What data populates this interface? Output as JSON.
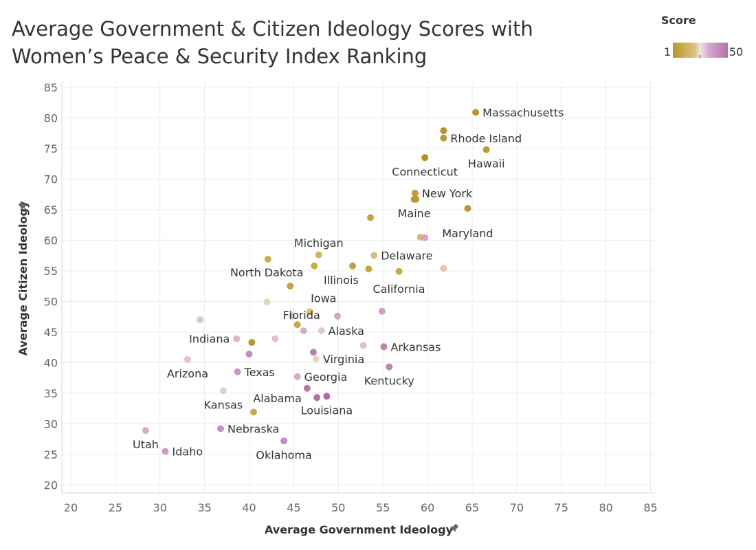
{
  "chart_data": {
    "type": "scatter",
    "title": "Average Government & Citizen Ideology Scores with Women’s Peace & Security Index Ranking",
    "xlabel": "Average Government Ideology",
    "ylabel": "Average Citizen Ideology",
    "xlim": [
      19,
      85.5
    ],
    "ylim": [
      18.7,
      86
    ],
    "xticks": [
      20,
      25,
      30,
      35,
      40,
      45,
      50,
      55,
      60,
      65,
      70,
      75,
      80,
      85
    ],
    "yticks": [
      20,
      25,
      30,
      35,
      40,
      45,
      50,
      55,
      60,
      65,
      70,
      75,
      80,
      85
    ],
    "grid": true,
    "legend": {
      "title": "Score",
      "min_label": "1",
      "max_label": "50",
      "position": "top-right"
    },
    "points": [
      {
        "label": "Massachusetts",
        "x": 65.4,
        "y": 80.9,
        "score": 4
      },
      {
        "label": "",
        "x": 61.8,
        "y": 77.9,
        "score": 3
      },
      {
        "label": "Rhode Island",
        "x": 61.8,
        "y": 76.7,
        "score": 5
      },
      {
        "label": "Hawaii",
        "x": 66.6,
        "y": 74.8,
        "score": 6
      },
      {
        "label": "Connecticut",
        "x": 59.7,
        "y": 73.5,
        "score": 2
      },
      {
        "label": "New York",
        "x": 58.6,
        "y": 67.7,
        "score": 7
      },
      {
        "label": "",
        "x": 58.7,
        "y": 66.7,
        "score": 5
      },
      {
        "label": "Maine",
        "x": 58.5,
        "y": 66.7,
        "score": 5
      },
      {
        "label": "Maryland",
        "x": 64.5,
        "y": 65.2,
        "score": 5
      },
      {
        "label": "",
        "x": 53.6,
        "y": 63.7,
        "score": 9
      },
      {
        "label": "",
        "x": 59.2,
        "y": 60.5,
        "score": 17
      },
      {
        "label": "",
        "x": 59.7,
        "y": 60.4,
        "score": 36
      },
      {
        "label": "Michigan",
        "x": 47.8,
        "y": 57.6,
        "score": 16
      },
      {
        "label": "Delaware",
        "x": 54.0,
        "y": 57.5,
        "score": 18
      },
      {
        "label": "",
        "x": 42.1,
        "y": 56.9,
        "score": 13
      },
      {
        "label": "",
        "x": 47.3,
        "y": 55.8,
        "score": 12
      },
      {
        "label": "",
        "x": 51.6,
        "y": 55.8,
        "score": 8
      },
      {
        "label": "Illinois",
        "x": 53.4,
        "y": 55.3,
        "score": 10
      },
      {
        "label": "California",
        "x": 56.8,
        "y": 54.9,
        "score": 11
      },
      {
        "label": "",
        "x": 61.8,
        "y": 55.4,
        "score": 21
      },
      {
        "label": "North Dakota",
        "x": 44.6,
        "y": 52.5,
        "score": 10
      },
      {
        "label": "",
        "x": 42.0,
        "y": 49.9,
        "score": 23
      },
      {
        "label": "Iowa",
        "x": 46.8,
        "y": 48.3,
        "score": 18
      },
      {
        "label": "",
        "x": 54.9,
        "y": 48.4,
        "score": 36
      },
      {
        "label": "",
        "x": 34.5,
        "y": 47.0,
        "score": 30
      },
      {
        "label": "",
        "x": 44.8,
        "y": 47.6,
        "score": 31
      },
      {
        "label": "",
        "x": 49.9,
        "y": 47.6,
        "score": 35
      },
      {
        "label": "Florida",
        "x": 45.4,
        "y": 46.2,
        "score": 11
      },
      {
        "label": "Alaska",
        "x": 48.1,
        "y": 45.2,
        "score": 29
      },
      {
        "label": "",
        "x": 46.1,
        "y": 45.2,
        "score": 34
      },
      {
        "label": "Indiana",
        "x": 38.6,
        "y": 43.9,
        "score": 32
      },
      {
        "label": "",
        "x": 42.9,
        "y": 43.9,
        "score": 30
      },
      {
        "label": "",
        "x": 40.3,
        "y": 43.3,
        "score": 5
      },
      {
        "label": "Arkansas",
        "x": 55.1,
        "y": 42.6,
        "score": 42
      },
      {
        "label": "",
        "x": 52.8,
        "y": 42.8,
        "score": 31
      },
      {
        "label": "",
        "x": 47.2,
        "y": 41.7,
        "score": 43
      },
      {
        "label": "",
        "x": 40.0,
        "y": 41.4,
        "score": 40
      },
      {
        "label": "Virginia",
        "x": 47.5,
        "y": 40.6,
        "score": 24
      },
      {
        "label": "Arizona",
        "x": 33.1,
        "y": 40.5,
        "score": 30
      },
      {
        "label": "Kentucky",
        "x": 55.7,
        "y": 39.3,
        "score": 42
      },
      {
        "label": "Texas",
        "x": 38.7,
        "y": 38.5,
        "score": 38
      },
      {
        "label": "Georgia",
        "x": 45.4,
        "y": 37.7,
        "score": 34
      },
      {
        "label": "Alabama",
        "x": 46.5,
        "y": 35.8,
        "score": 45
      },
      {
        "label": "Kansas",
        "x": 37.1,
        "y": 35.4,
        "score": 25
      },
      {
        "label": "",
        "x": 47.6,
        "y": 34.3,
        "score": 46
      },
      {
        "label": "Louisiana",
        "x": 48.7,
        "y": 34.5,
        "score": 47
      },
      {
        "label": "",
        "x": 40.5,
        "y": 31.9,
        "score": 12
      },
      {
        "label": "Utah",
        "x": 28.4,
        "y": 28.9,
        "score": 34
      },
      {
        "label": "Nebraska",
        "x": 36.8,
        "y": 29.2,
        "score": 39
      },
      {
        "label": "Oklahoma",
        "x": 43.9,
        "y": 27.2,
        "score": 40
      },
      {
        "label": "Idaho",
        "x": 30.6,
        "y": 25.5,
        "score": 37
      }
    ]
  }
}
